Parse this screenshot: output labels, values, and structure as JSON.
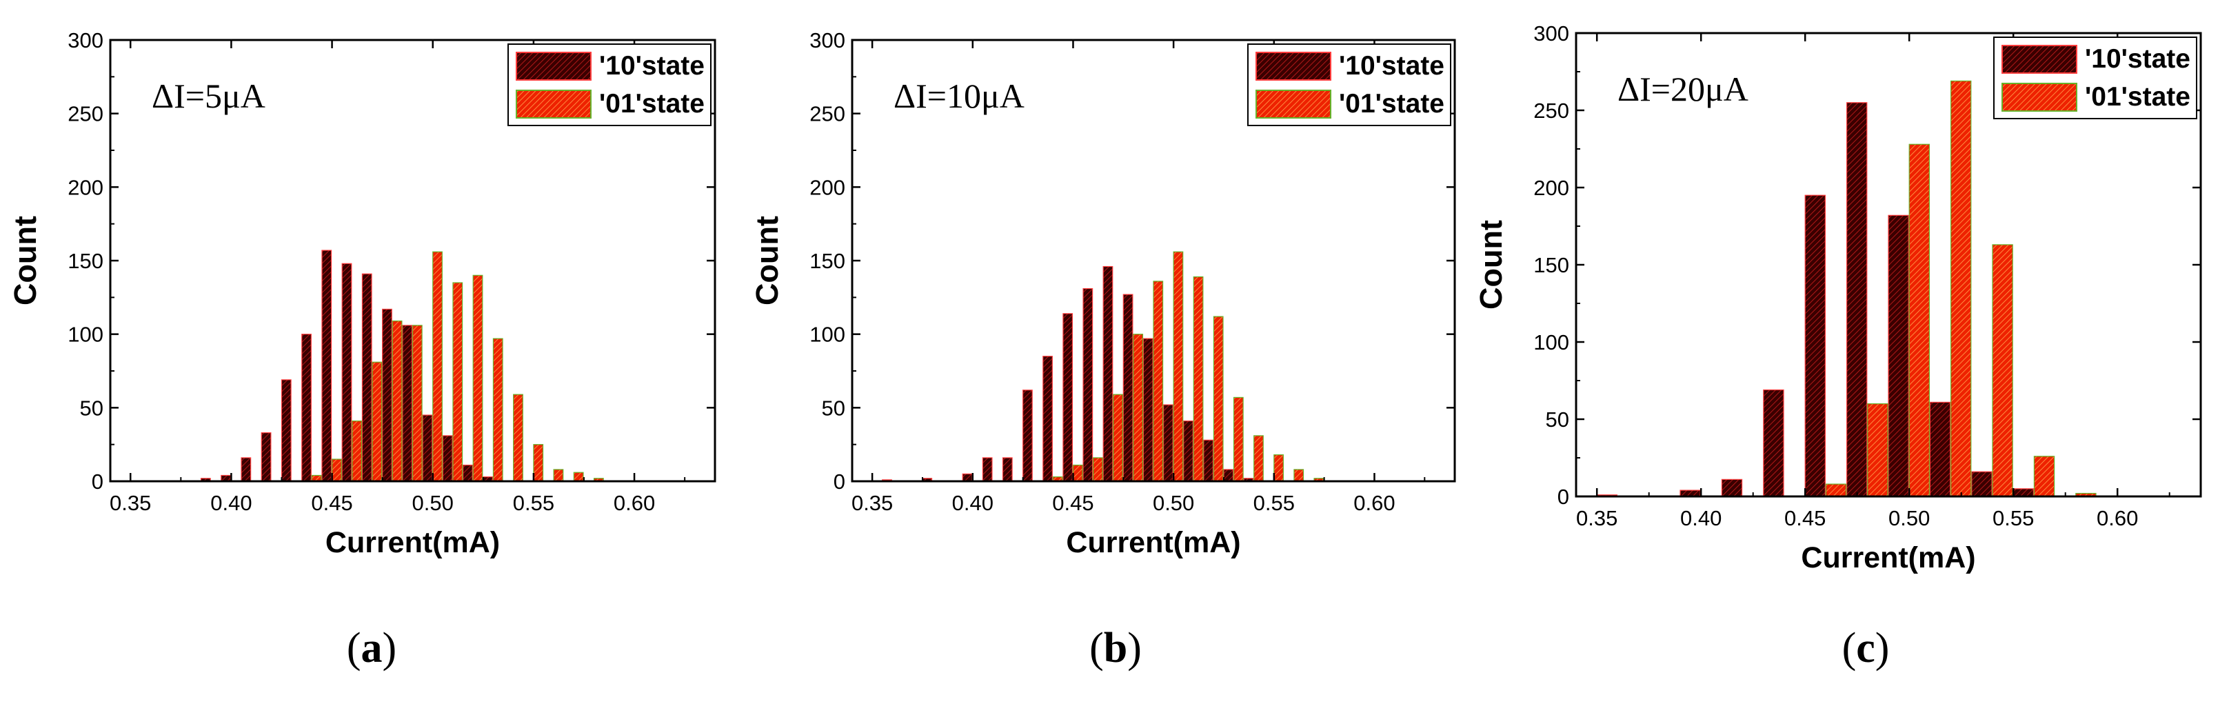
{
  "colors": {
    "s10": "#3a0000",
    "s10_edge": "#ff3d3d",
    "s01": "#ee2200",
    "s01_edge": "#66b22a",
    "axis": "#000000"
  },
  "chart_data": [
    {
      "type": "bar",
      "panel": "a",
      "caption_open": "(",
      "caption_letter": "a",
      "caption_close": ")",
      "annotation": "ΔI=5μA",
      "xlabel": "Current(mA)",
      "ylabel": "Count",
      "xlim": [
        0.34,
        0.64
      ],
      "ylim": [
        0,
        300
      ],
      "xticks": [
        "0.35",
        "0.40",
        "0.45",
        "0.50",
        "0.55",
        "0.60"
      ],
      "yticks": [
        "0",
        "50",
        "100",
        "150",
        "200",
        "250",
        "300"
      ],
      "bin_width": 0.01,
      "legend": {
        "position": "top-right",
        "entries": [
          "'10'state",
          "'01'state"
        ]
      },
      "series": [
        {
          "name": "'10'state",
          "x": [
            0.39,
            0.4,
            0.41,
            0.42,
            0.43,
            0.44,
            0.45,
            0.46,
            0.47,
            0.48,
            0.49,
            0.5,
            0.51,
            0.52,
            0.53
          ],
          "values": [
            2,
            4,
            16,
            33,
            69,
            100,
            157,
            148,
            141,
            117,
            106,
            45,
            31,
            11,
            3
          ]
        },
        {
          "name": "'01'state",
          "x": [
            0.44,
            0.45,
            0.46,
            0.47,
            0.48,
            0.49,
            0.5,
            0.51,
            0.52,
            0.53,
            0.54,
            0.55,
            0.56,
            0.57,
            0.58
          ],
          "values": [
            4,
            15,
            41,
            81,
            109,
            106,
            156,
            135,
            140,
            97,
            59,
            25,
            8,
            6,
            2
          ]
        }
      ]
    },
    {
      "type": "bar",
      "panel": "b",
      "caption_open": "(",
      "caption_letter": "b",
      "caption_close": ")",
      "annotation": "ΔI=10μA",
      "xlabel": "Current(mA)",
      "ylabel": "Count",
      "xlim": [
        0.34,
        0.64
      ],
      "ylim": [
        0,
        300
      ],
      "xticks": [
        "0.35",
        "0.40",
        "0.45",
        "0.50",
        "0.55",
        "0.60"
      ],
      "yticks": [
        "0",
        "50",
        "100",
        "150",
        "200",
        "250",
        "300"
      ],
      "bin_width": 0.01,
      "legend": {
        "position": "top-right",
        "entries": [
          "'10'state",
          "'01'state"
        ]
      },
      "series": [
        {
          "name": "'10'state",
          "x": [
            0.36,
            0.38,
            0.4,
            0.41,
            0.42,
            0.43,
            0.44,
            0.45,
            0.46,
            0.47,
            0.48,
            0.49,
            0.5,
            0.51,
            0.52,
            0.53,
            0.54
          ],
          "values": [
            1,
            2,
            5,
            16,
            16,
            62,
            85,
            114,
            131,
            146,
            127,
            97,
            52,
            41,
            28,
            8,
            2
          ]
        },
        {
          "name": "'01'state",
          "x": [
            0.44,
            0.45,
            0.46,
            0.47,
            0.48,
            0.49,
            0.5,
            0.51,
            0.52,
            0.53,
            0.54,
            0.55,
            0.56,
            0.57
          ],
          "values": [
            3,
            11,
            16,
            59,
            100,
            136,
            156,
            139,
            112,
            57,
            31,
            18,
            8,
            2
          ]
        }
      ]
    },
    {
      "type": "bar",
      "panel": "c",
      "caption_open": "(",
      "caption_letter": "c",
      "caption_close": ")",
      "annotation": "ΔI=20μA",
      "xlabel": "Current(mA)",
      "ylabel": "Count",
      "xlim": [
        0.34,
        0.64
      ],
      "ylim": [
        0,
        300
      ],
      "xticks": [
        "0.35",
        "0.40",
        "0.45",
        "0.50",
        "0.55",
        "0.60"
      ],
      "yticks": [
        "0",
        "50",
        "100",
        "150",
        "200",
        "250",
        "300"
      ],
      "bin_width": 0.02,
      "legend": {
        "position": "top-right",
        "entries": [
          "'10'state",
          "'01'state"
        ]
      },
      "series": [
        {
          "name": "'10'state",
          "x": [
            0.36,
            0.4,
            0.42,
            0.44,
            0.46,
            0.48,
            0.5,
            0.52,
            0.54,
            0.56
          ],
          "values": [
            1,
            4,
            11,
            69,
            195,
            255,
            182,
            61,
            16,
            5
          ]
        },
        {
          "name": "'01'state",
          "x": [
            0.46,
            0.48,
            0.5,
            0.52,
            0.54,
            0.56,
            0.58
          ],
          "values": [
            8,
            60,
            228,
            269,
            163,
            26,
            2
          ]
        }
      ]
    }
  ]
}
